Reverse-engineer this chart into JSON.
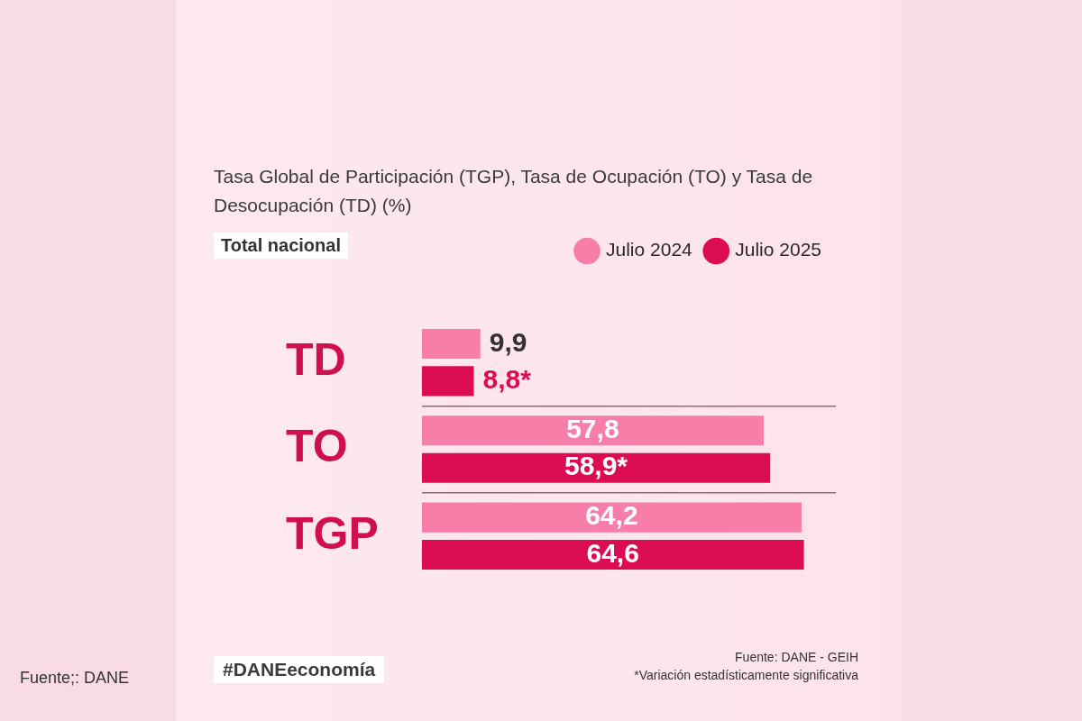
{
  "chart_data": {
    "type": "bar",
    "orientation": "horizontal",
    "title": "Tasa Global de Participación (TGP), Tasa de Ocupación (TO) y Tasa de Desocupación (TD) (%)",
    "subtitle": "Total nacional",
    "categories": [
      "TD",
      "TO",
      "TGP"
    ],
    "series": [
      {
        "name": "Julio 2024",
        "color": "#f87eaa",
        "values": [
          9.9,
          57.8,
          64.2
        ],
        "value_labels": [
          "9,9",
          "57,8",
          "64,2"
        ]
      },
      {
        "name": "Julio 2025",
        "color": "#dc0c52",
        "values": [
          8.8,
          58.9,
          64.6
        ],
        "value_labels": [
          "8,8*",
          "58,9*",
          "64,6"
        ]
      }
    ],
    "legend": "top right",
    "grid": "y",
    "annotations": [
      "#DANEeconomía",
      "Fuente: DANE - GEIH",
      "*Variación estadísticamente significativa",
      "Fuente;: DANE"
    ]
  }
}
